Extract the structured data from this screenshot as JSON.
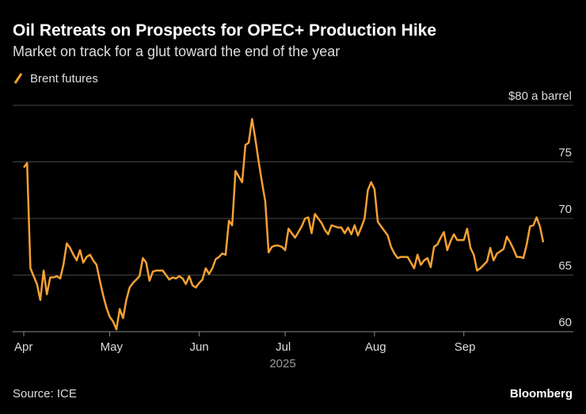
{
  "chart_data": {
    "type": "line",
    "title": "Oil Retreats on Prospects for OPEC+ Production Hike",
    "subtitle": "Market on track for a glut toward the end of the year",
    "x_label": "2025",
    "source": "Source: ICE",
    "brand": "Bloomberg",
    "categories": [
      "Apr",
      null,
      null,
      null,
      null,
      null,
      null,
      null,
      null,
      null,
      null,
      null,
      null,
      null,
      null,
      null,
      null,
      null,
      null,
      null,
      null,
      null,
      null,
      null,
      null,
      null,
      "May",
      null,
      null,
      null,
      null,
      null,
      null,
      null,
      null,
      null,
      null,
      null,
      null,
      null,
      null,
      null,
      null,
      null,
      null,
      null,
      null,
      null,
      null,
      null,
      null,
      null,
      null,
      "Jun",
      null,
      null,
      null,
      null,
      null,
      null,
      null,
      null,
      null,
      null,
      null,
      null,
      null,
      null,
      null,
      null,
      null,
      null,
      null,
      null,
      null,
      null,
      null,
      null,
      null,
      "Jul",
      null,
      null,
      null,
      null,
      null,
      null,
      null,
      null,
      null,
      null,
      null,
      null,
      null,
      null,
      null,
      null,
      null,
      null,
      null,
      null,
      null,
      null,
      null,
      null,
      null,
      null,
      "Aug",
      null,
      null,
      null,
      null,
      null,
      null,
      null,
      null,
      null,
      null,
      null,
      null,
      null,
      null,
      null,
      null,
      null,
      null,
      null,
      null,
      null,
      null,
      null,
      null,
      null,
      null,
      "Sep",
      null,
      null,
      null,
      null,
      null,
      null,
      null,
      null,
      null,
      null,
      null,
      null,
      null,
      null,
      null,
      null,
      null,
      null,
      null,
      null,
      null,
      null,
      null,
      null
    ],
    "series": [
      {
        "name": "Brent futures",
        "color": "#f5a033",
        "values": [
          74.5,
          74.9,
          65.6,
          64.9,
          64.2,
          62.8,
          65.4,
          63.3,
          64.8,
          64.8,
          64.9,
          64.7,
          65.9,
          67.8,
          67.4,
          66.8,
          66.3,
          67.2,
          66.1,
          66.6,
          66.8,
          66.3,
          65.9,
          64.5,
          63.2,
          62.1,
          61.3,
          60.9,
          60.2,
          62.0,
          61.2,
          62.8,
          63.9,
          64.3,
          64.6,
          64.9,
          66.5,
          66.1,
          64.5,
          65.3,
          65.4,
          65.4,
          65.4,
          65.0,
          64.6,
          64.8,
          64.7,
          64.9,
          64.7,
          64.2,
          64.9,
          64.1,
          63.9,
          64.3,
          64.6,
          65.6,
          65.1,
          65.6,
          66.4,
          66.6,
          66.9,
          66.8,
          69.8,
          69.4,
          74.2,
          73.7,
          73.2,
          76.5,
          76.7,
          78.8,
          77.0,
          75.0,
          73.2,
          71.5,
          67.0,
          67.5,
          67.6,
          67.6,
          67.5,
          67.2,
          69.1,
          68.7,
          68.3,
          68.8,
          69.3,
          70.0,
          70.1,
          68.7,
          70.4,
          70.0,
          69.6,
          69.0,
          68.6,
          69.4,
          69.3,
          69.2,
          69.2,
          68.7,
          69.2,
          68.6,
          69.4,
          68.5,
          69.2,
          70.0,
          72.5,
          73.2,
          72.6,
          69.7,
          69.3,
          68.9,
          68.5,
          67.5,
          66.9,
          66.5,
          66.6,
          66.6,
          66.6,
          66.1,
          65.6,
          66.8,
          65.9,
          66.3,
          66.5,
          65.7,
          67.5,
          67.7,
          68.3,
          68.8,
          67.2,
          68.0,
          68.6,
          68.1,
          68.1,
          68.1,
          69.1,
          67.4,
          66.8,
          65.4,
          65.6,
          65.9,
          66.2,
          67.4,
          66.3,
          66.9,
          67.1,
          67.3,
          68.4,
          67.9,
          67.3,
          66.6,
          66.6,
          66.5,
          67.7,
          69.3,
          69.4,
          70.1,
          69.3,
          67.9
        ]
      }
    ],
    "ylim": [
      60,
      80
    ],
    "yticks": [
      60,
      65,
      70,
      75,
      {
        "value": 80,
        "label": "$80 a barrel"
      }
    ],
    "grid": true
  }
}
